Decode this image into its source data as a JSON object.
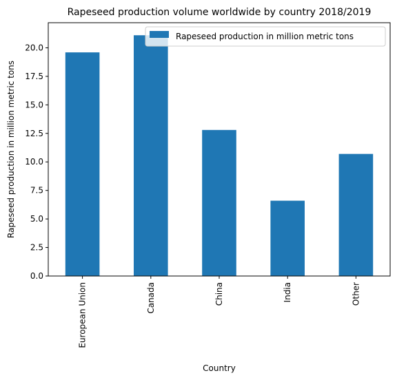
{
  "chart_data": {
    "type": "bar",
    "title": "Rapeseed production volume worldwide by country 2018/2019",
    "xlabel": "Country",
    "ylabel": "Rapeseed production in million metric tons",
    "categories": [
      "European Union",
      "Canada",
      "China",
      "India",
      "Other"
    ],
    "series": [
      {
        "name": "Rapeseed production in million metric tons",
        "values": [
          19.6,
          21.1,
          12.8,
          6.6,
          10.7
        ],
        "color": "#1f77b4"
      }
    ],
    "ylim": [
      0,
      22.2
    ],
    "yticks": [
      0.0,
      2.5,
      5.0,
      7.5,
      10.0,
      12.5,
      15.0,
      17.5,
      20.0
    ],
    "ytick_labels": [
      "0.0",
      "2.5",
      "5.0",
      "7.5",
      "10.0",
      "12.5",
      "15.0",
      "17.5",
      "20.0"
    ],
    "grid": false,
    "legend_position": "top-right"
  }
}
